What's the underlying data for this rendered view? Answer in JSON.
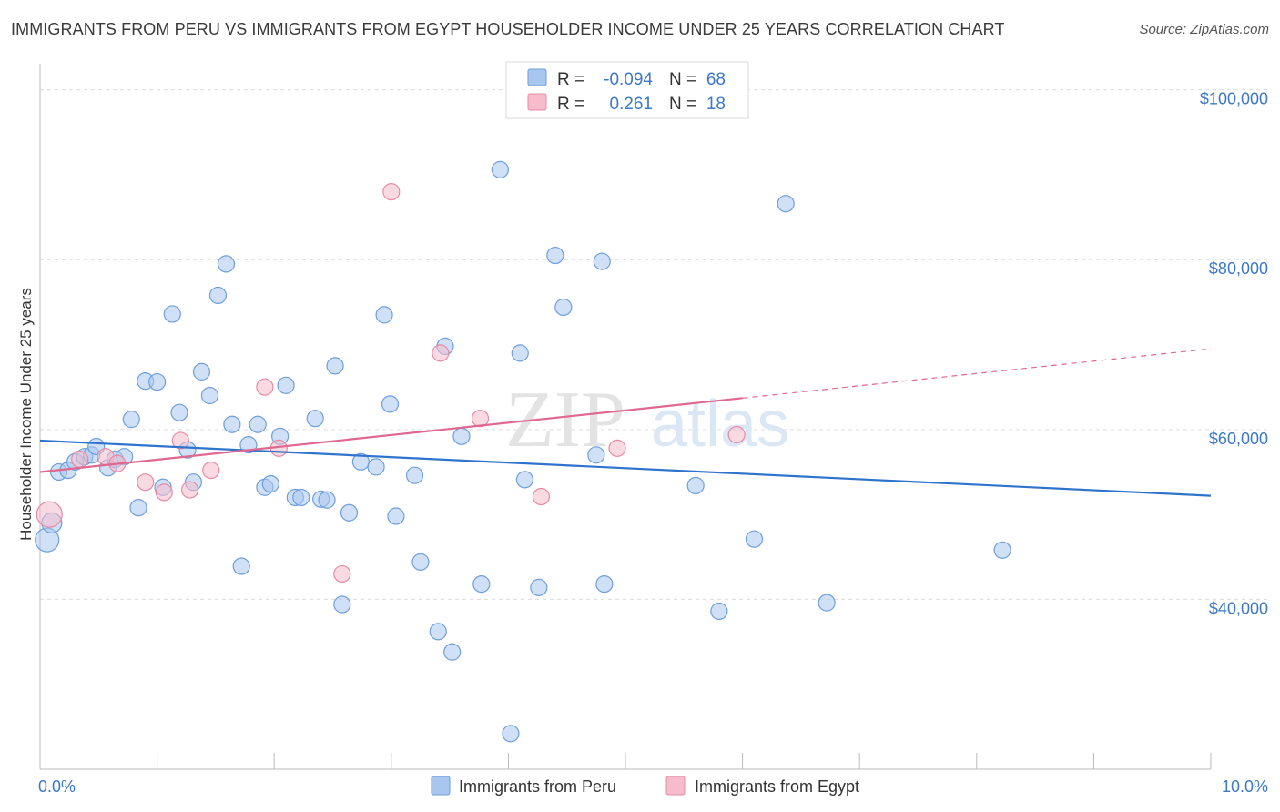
{
  "title": "IMMIGRANTS FROM PERU VS IMMIGRANTS FROM EGYPT HOUSEHOLDER INCOME UNDER 25 YEARS CORRELATION CHART",
  "source": "Source: ZipAtlas.com",
  "watermark": {
    "zip": "ZIP",
    "atlas": "atlas"
  },
  "colors": {
    "peru_fill": "#a9c7ee",
    "peru_stroke": "#6f9fdc",
    "peru_line": "#2f74cc",
    "egypt_fill": "#f6bccb",
    "egypt_stroke": "#e88aa5",
    "egypt_line": "#e0678f",
    "grid": "#dcdcdc",
    "tick_label": "#3b78c8"
  },
  "legend_top": {
    "rows": [
      {
        "series": "peru",
        "r_label": "R =",
        "r_value": "-0.094",
        "n_label": "N =",
        "n_value": "68"
      },
      {
        "series": "egypt",
        "r_label": "R =",
        "r_value": "0.261",
        "n_label": "N =",
        "n_value": "18"
      }
    ]
  },
  "chart_data": {
    "type": "scatter",
    "title": "IMMIGRANTS FROM PERU VS IMMIGRANTS FROM EGYPT HOUSEHOLDER INCOME UNDER 25 YEARS CORRELATION CHART",
    "xlabel": "",
    "ylabel": "Householder Income Under 25 years",
    "xlim": [
      0,
      10
    ],
    "ylim": [
      20000,
      102000
    ],
    "x_tick_labels": [
      {
        "value": 0,
        "label": "0.0%"
      },
      {
        "value": 10,
        "label": "10.0%"
      }
    ],
    "y_tick_labels": [
      {
        "value": 40000,
        "label": "$40,000"
      },
      {
        "value": 60000,
        "label": "$60,000"
      },
      {
        "value": 80000,
        "label": "$80,000"
      },
      {
        "value": 100000,
        "label": "$100,000"
      }
    ],
    "series": [
      {
        "name": "Immigrants from Peru",
        "key": "peru",
        "trend": {
          "x0": 0,
          "y0": 58700,
          "x1": 10,
          "y1": 52200,
          "dashed_from": null
        },
        "points": [
          [
            0.06,
            47000,
            13
          ],
          [
            0.1,
            49000,
            11
          ],
          [
            0.16,
            55000,
            9
          ],
          [
            0.24,
            55200,
            9
          ],
          [
            0.3,
            56200,
            9
          ],
          [
            0.38,
            56800,
            9
          ],
          [
            0.44,
            57000,
            9
          ],
          [
            0.48,
            58000,
            9
          ],
          [
            0.58,
            55500,
            9
          ],
          [
            0.64,
            56500,
            9
          ],
          [
            0.72,
            56800,
            9
          ],
          [
            0.78,
            61200,
            9
          ],
          [
            0.84,
            50800,
            9
          ],
          [
            0.9,
            65700,
            9
          ],
          [
            1.0,
            65600,
            9
          ],
          [
            1.05,
            53200,
            9
          ],
          [
            1.13,
            73600,
            9
          ],
          [
            1.19,
            62000,
            9
          ],
          [
            1.26,
            57600,
            9
          ],
          [
            1.31,
            53800,
            9
          ],
          [
            1.38,
            66800,
            9
          ],
          [
            1.45,
            64000,
            9
          ],
          [
            1.52,
            75800,
            9
          ],
          [
            1.59,
            79500,
            9
          ],
          [
            1.64,
            60600,
            9
          ],
          [
            1.72,
            43900,
            9
          ],
          [
            1.78,
            58200,
            9
          ],
          [
            1.86,
            60600,
            9
          ],
          [
            1.92,
            53200,
            9
          ],
          [
            1.97,
            53600,
            9
          ],
          [
            2.05,
            59200,
            9
          ],
          [
            2.1,
            65200,
            9
          ],
          [
            2.18,
            52000,
            9
          ],
          [
            2.23,
            52000,
            9
          ],
          [
            2.35,
            61300,
            9
          ],
          [
            2.4,
            51800,
            9
          ],
          [
            2.45,
            51700,
            9
          ],
          [
            2.52,
            67500,
            9
          ],
          [
            2.58,
            39400,
            9
          ],
          [
            2.64,
            50200,
            9
          ],
          [
            2.74,
            56200,
            9
          ],
          [
            2.87,
            55600,
            9
          ],
          [
            2.94,
            73500,
            9
          ],
          [
            2.99,
            63000,
            9
          ],
          [
            3.04,
            49800,
            9
          ],
          [
            3.2,
            54600,
            9
          ],
          [
            3.25,
            44400,
            9
          ],
          [
            3.4,
            36200,
            9
          ],
          [
            3.46,
            69800,
            9
          ],
          [
            3.52,
            33800,
            9
          ],
          [
            3.6,
            59200,
            9
          ],
          [
            3.77,
            41800,
            9
          ],
          [
            3.93,
            90600,
            9
          ],
          [
            4.02,
            24200,
            9
          ],
          [
            4.1,
            69000,
            9
          ],
          [
            4.14,
            54100,
            9
          ],
          [
            4.26,
            41400,
            9
          ],
          [
            4.4,
            80500,
            9
          ],
          [
            4.47,
            74400,
            9
          ],
          [
            4.75,
            57000,
            9
          ],
          [
            4.8,
            79800,
            9
          ],
          [
            4.82,
            41800,
            9
          ],
          [
            5.6,
            53400,
            9
          ],
          [
            5.8,
            38600,
            9
          ],
          [
            6.1,
            47100,
            9
          ],
          [
            6.37,
            86600,
            9
          ],
          [
            6.72,
            39600,
            9
          ],
          [
            8.22,
            45800,
            9
          ]
        ]
      },
      {
        "name": "Immigrants from Egypt",
        "key": "egypt",
        "trend": {
          "x0": 0,
          "y0": 55000,
          "x1": 10,
          "y1": 69500,
          "dashed_from": 6.0
        },
        "points": [
          [
            0.08,
            50000,
            14
          ],
          [
            0.34,
            56500,
            9
          ],
          [
            0.56,
            56800,
            9
          ],
          [
            0.66,
            56000,
            9
          ],
          [
            0.9,
            53800,
            9
          ],
          [
            1.06,
            52600,
            9
          ],
          [
            1.2,
            58700,
            9
          ],
          [
            1.28,
            52900,
            9
          ],
          [
            1.46,
            55200,
            9
          ],
          [
            1.92,
            65000,
            9
          ],
          [
            2.04,
            57800,
            9
          ],
          [
            2.58,
            43000,
            9
          ],
          [
            3.0,
            88000,
            9
          ],
          [
            3.42,
            69000,
            9
          ],
          [
            3.76,
            61300,
            9
          ],
          [
            4.28,
            52100,
            9
          ],
          [
            4.93,
            57800,
            9
          ],
          [
            5.95,
            59400,
            9
          ]
        ]
      }
    ]
  },
  "legend_bottom": [
    {
      "series": "peru",
      "label": "Immigrants from Peru"
    },
    {
      "series": "egypt",
      "label": "Immigrants from Egypt"
    }
  ]
}
